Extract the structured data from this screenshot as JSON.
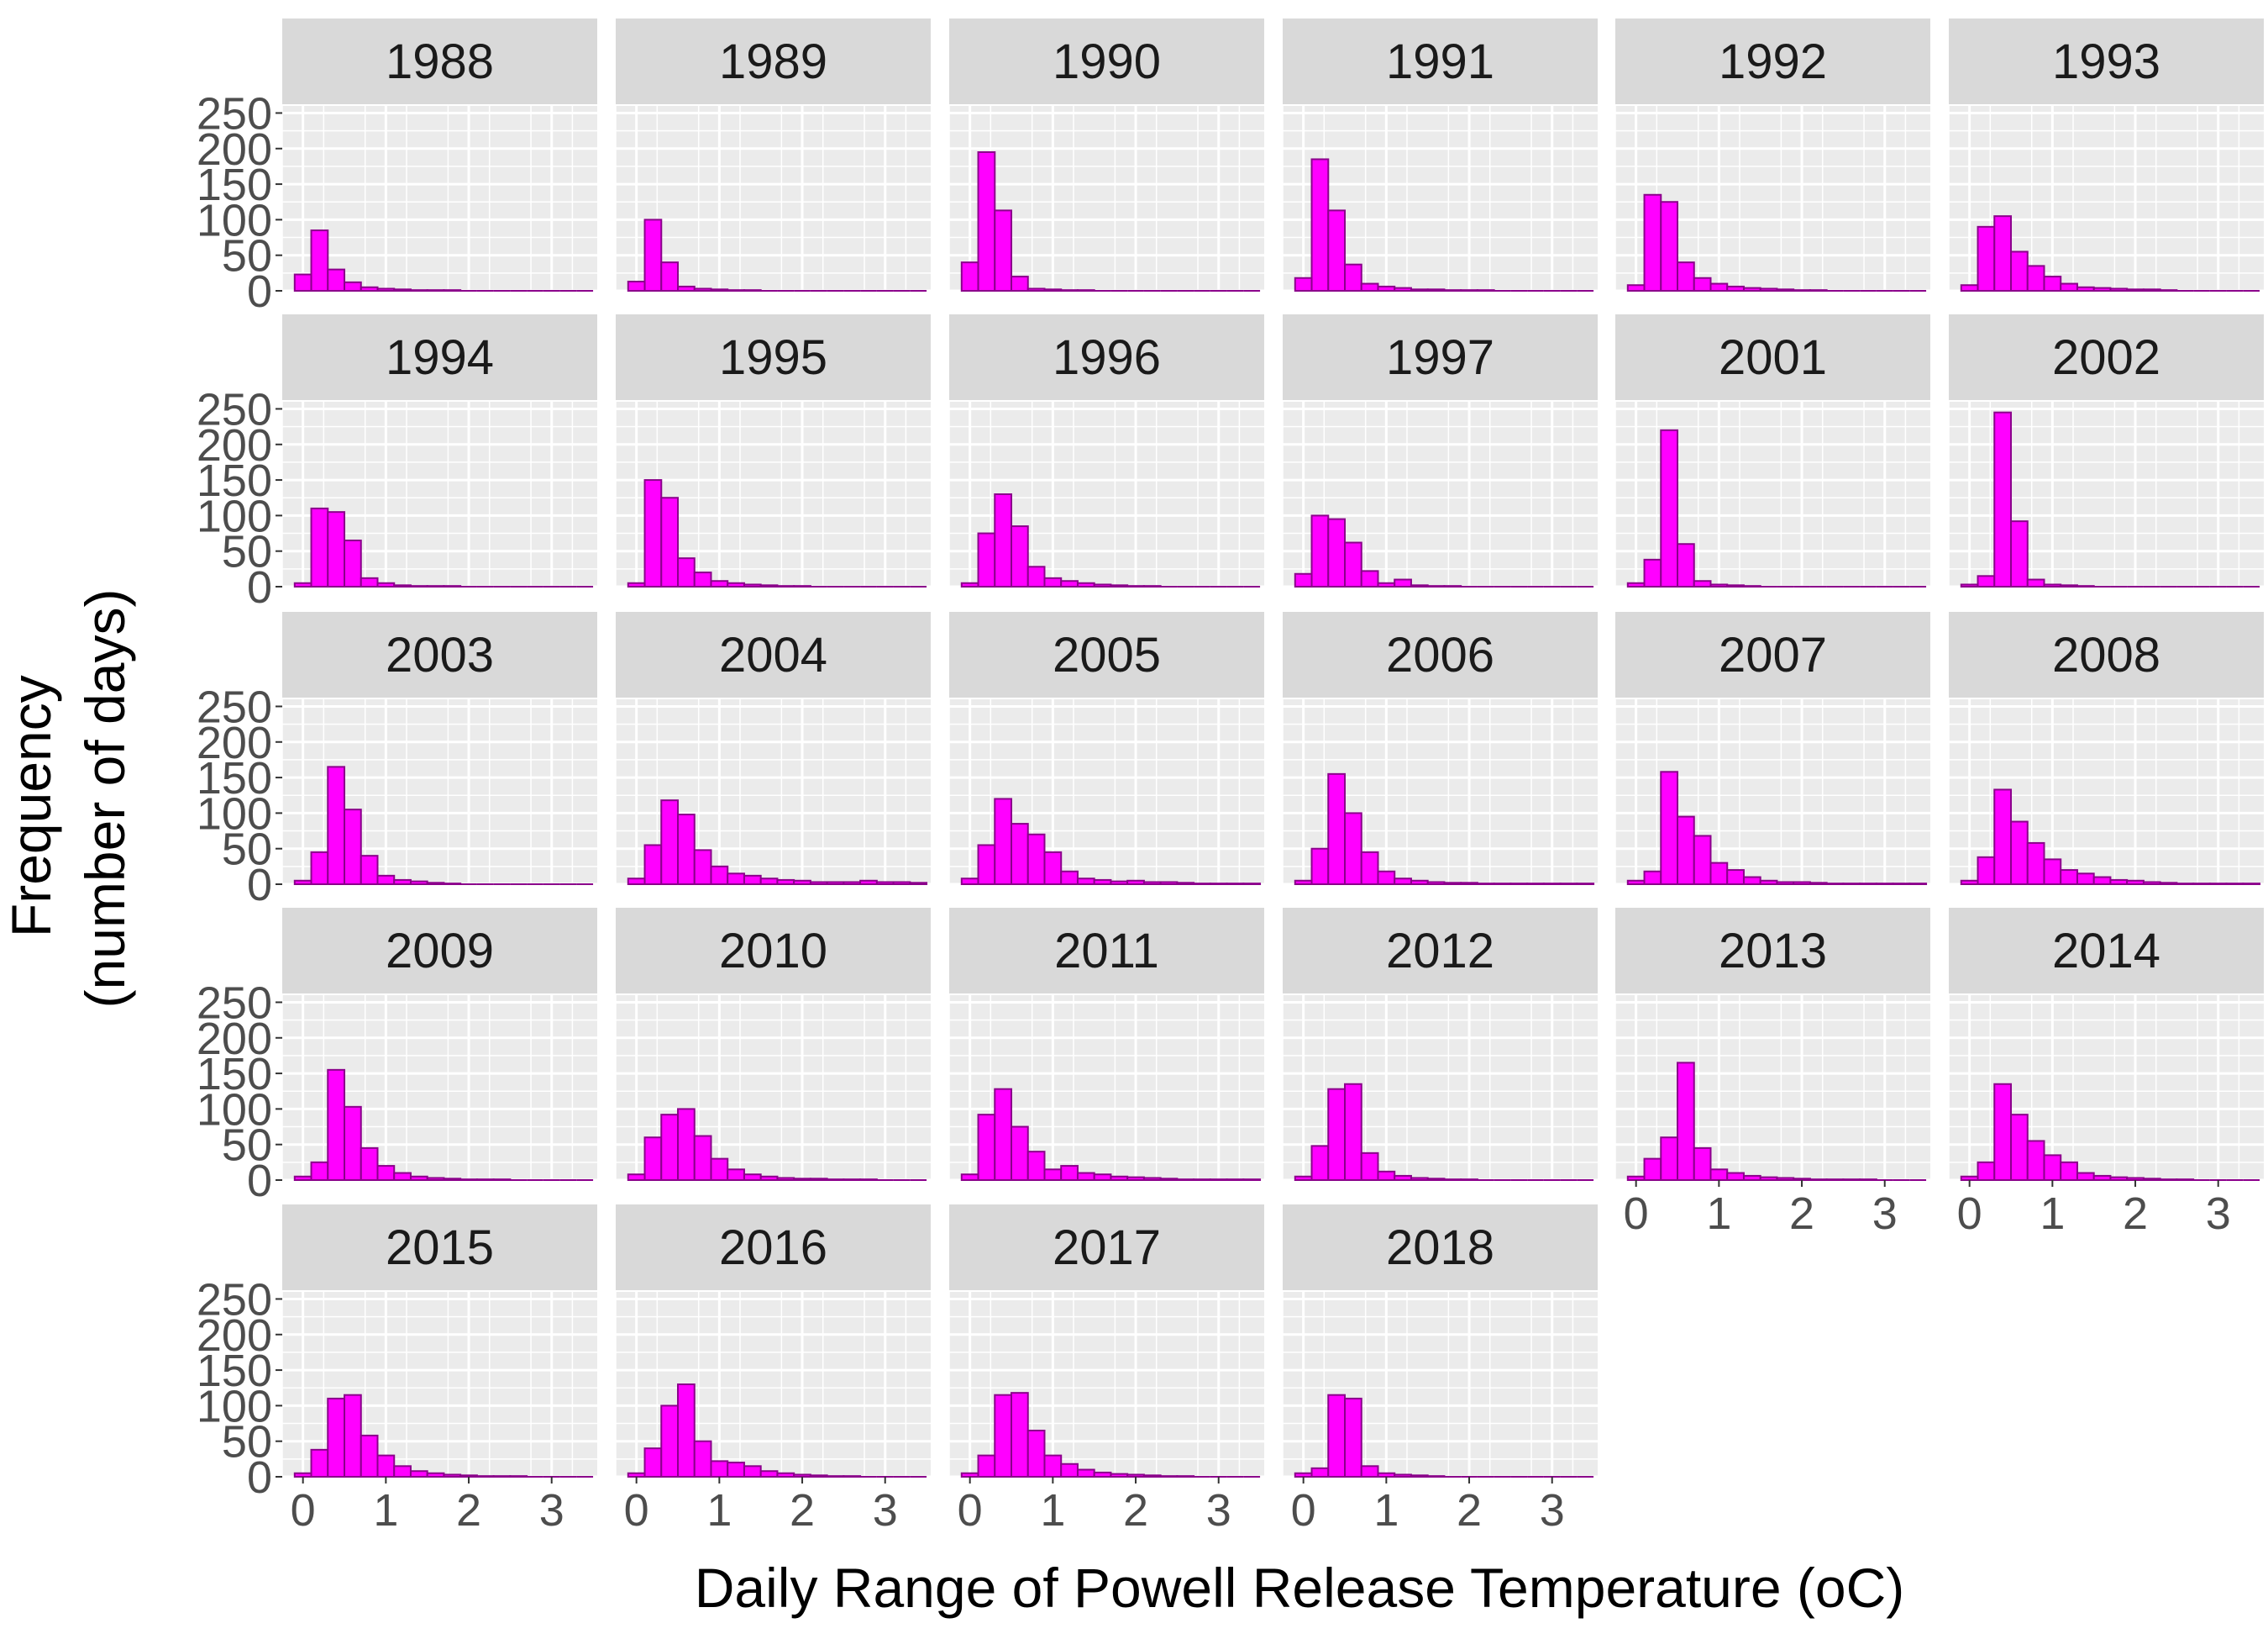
{
  "chart_data": {
    "type": "bar",
    "subtype": "faceted-histogram",
    "title": "",
    "xlabel": "Daily Range of Powell Release Temperature (oC)",
    "ylabel_lines": [
      "Frequency",
      "(number of days)"
    ],
    "xlim": [
      -0.25,
      3.55
    ],
    "ylim": [
      0,
      260
    ],
    "x_ticks": [
      0,
      1,
      2,
      3
    ],
    "y_ticks": [
      0,
      50,
      100,
      150,
      200,
      250
    ],
    "bin_width": 0.2,
    "bin_starts": [
      -0.1,
      0.1,
      0.3,
      0.5,
      0.7,
      0.9,
      1.1,
      1.3,
      1.5,
      1.7,
      1.9,
      2.1,
      2.3,
      2.5,
      2.7,
      2.9,
      3.1,
      3.3
    ],
    "fill_color": "#FF00FF",
    "outline_color": "#8B008B",
    "panel_background": "#EBEBEB",
    "strip_background": "#D9D9D9",
    "grid_color": "#FFFFFF",
    "facet_ncol": 6,
    "panels": [
      {
        "label": "1988",
        "counts": [
          23,
          85,
          30,
          12,
          5,
          3,
          2,
          1,
          1,
          1,
          0,
          0,
          0,
          0,
          0,
          0,
          0,
          0
        ]
      },
      {
        "label": "1989",
        "counts": [
          13,
          100,
          40,
          6,
          3,
          2,
          1,
          1,
          0,
          0,
          0,
          0,
          0,
          0,
          0,
          0,
          0,
          0
        ]
      },
      {
        "label": "1990",
        "counts": [
          40,
          195,
          113,
          20,
          3,
          2,
          1,
          1,
          0,
          0,
          0,
          0,
          0,
          0,
          0,
          0,
          0,
          0
        ]
      },
      {
        "label": "1991",
        "counts": [
          18,
          185,
          113,
          37,
          10,
          6,
          4,
          2,
          2,
          1,
          1,
          1,
          0,
          0,
          0,
          0,
          0,
          0
        ]
      },
      {
        "label": "1992",
        "counts": [
          8,
          135,
          125,
          40,
          18,
          10,
          6,
          4,
          3,
          2,
          1,
          1,
          0,
          0,
          0,
          0,
          0,
          0
        ]
      },
      {
        "label": "1993",
        "counts": [
          8,
          90,
          105,
          55,
          35,
          20,
          10,
          5,
          4,
          3,
          2,
          2,
          1,
          0,
          0,
          0,
          0,
          0
        ]
      },
      {
        "label": "1994",
        "counts": [
          5,
          110,
          105,
          65,
          12,
          5,
          2,
          1,
          1,
          1,
          0,
          0,
          0,
          0,
          0,
          0,
          0,
          0
        ]
      },
      {
        "label": "1995",
        "counts": [
          5,
          150,
          125,
          40,
          20,
          8,
          5,
          3,
          2,
          1,
          1,
          0,
          0,
          0,
          0,
          0,
          0,
          0
        ]
      },
      {
        "label": "1996",
        "counts": [
          5,
          75,
          130,
          85,
          28,
          12,
          8,
          5,
          3,
          2,
          1,
          1,
          0,
          0,
          0,
          0,
          0,
          0
        ]
      },
      {
        "label": "1997",
        "counts": [
          18,
          100,
          95,
          62,
          22,
          5,
          10,
          2,
          1,
          1,
          0,
          0,
          0,
          0,
          0,
          0,
          0,
          0
        ]
      },
      {
        "label": "2001",
        "counts": [
          5,
          38,
          220,
          60,
          8,
          3,
          2,
          1,
          0,
          0,
          0,
          0,
          0,
          0,
          0,
          0,
          0,
          0
        ]
      },
      {
        "label": "2002",
        "counts": [
          3,
          15,
          245,
          92,
          10,
          3,
          2,
          1,
          0,
          0,
          0,
          0,
          0,
          0,
          0,
          0,
          0,
          0
        ]
      },
      {
        "label": "2003",
        "counts": [
          5,
          45,
          165,
          105,
          40,
          12,
          6,
          4,
          2,
          1,
          0,
          0,
          0,
          0,
          0,
          0,
          0,
          0
        ]
      },
      {
        "label": "2004",
        "counts": [
          8,
          55,
          118,
          98,
          48,
          25,
          15,
          12,
          8,
          6,
          5,
          3,
          3,
          3,
          5,
          3,
          3,
          2
        ]
      },
      {
        "label": "2005",
        "counts": [
          8,
          55,
          120,
          85,
          70,
          45,
          18,
          8,
          6,
          4,
          5,
          3,
          3,
          2,
          1,
          1,
          1,
          1
        ]
      },
      {
        "label": "2006",
        "counts": [
          5,
          50,
          155,
          100,
          45,
          18,
          8,
          5,
          3,
          2,
          2,
          1,
          1,
          1,
          1,
          1,
          1,
          1
        ]
      },
      {
        "label": "2007",
        "counts": [
          5,
          18,
          158,
          95,
          68,
          30,
          20,
          10,
          5,
          3,
          3,
          2,
          1,
          1,
          1,
          1,
          1,
          1
        ]
      },
      {
        "label": "2008",
        "counts": [
          5,
          38,
          133,
          88,
          58,
          35,
          20,
          15,
          10,
          6,
          5,
          3,
          2,
          1,
          1,
          1,
          1,
          1
        ]
      },
      {
        "label": "2009",
        "counts": [
          5,
          25,
          155,
          103,
          45,
          20,
          10,
          5,
          3,
          2,
          1,
          1,
          1,
          0,
          0,
          0,
          0,
          0
        ]
      },
      {
        "label": "2010",
        "counts": [
          8,
          60,
          92,
          100,
          62,
          30,
          15,
          8,
          5,
          3,
          2,
          2,
          1,
          1,
          1,
          0,
          0,
          0
        ]
      },
      {
        "label": "2011",
        "counts": [
          8,
          92,
          128,
          75,
          40,
          15,
          20,
          10,
          8,
          5,
          4,
          3,
          2,
          1,
          1,
          1,
          1,
          1
        ]
      },
      {
        "label": "2012",
        "counts": [
          5,
          48,
          128,
          135,
          38,
          12,
          6,
          3,
          2,
          1,
          1,
          0,
          0,
          0,
          0,
          0,
          0,
          0
        ]
      },
      {
        "label": "2013",
        "counts": [
          5,
          30,
          60,
          165,
          45,
          15,
          10,
          6,
          4,
          3,
          2,
          1,
          1,
          1,
          1,
          0,
          0,
          0
        ]
      },
      {
        "label": "2014",
        "counts": [
          5,
          25,
          135,
          92,
          55,
          35,
          25,
          10,
          6,
          4,
          3,
          2,
          1,
          1,
          0,
          0,
          0,
          0
        ]
      },
      {
        "label": "2015",
        "counts": [
          5,
          38,
          110,
          115,
          58,
          30,
          15,
          8,
          5,
          3,
          2,
          1,
          1,
          1,
          0,
          0,
          0,
          0
        ]
      },
      {
        "label": "2016",
        "counts": [
          5,
          40,
          100,
          130,
          50,
          22,
          20,
          15,
          8,
          5,
          3,
          2,
          1,
          1,
          0,
          0,
          0,
          0
        ]
      },
      {
        "label": "2017",
        "counts": [
          5,
          30,
          115,
          118,
          65,
          30,
          18,
          10,
          6,
          4,
          3,
          2,
          1,
          1,
          0,
          0,
          0,
          0
        ]
      },
      {
        "label": "2018",
        "counts": [
          5,
          12,
          115,
          110,
          15,
          5,
          3,
          2,
          1,
          0,
          0,
          0,
          0,
          0,
          0,
          0,
          0,
          0
        ]
      }
    ]
  }
}
